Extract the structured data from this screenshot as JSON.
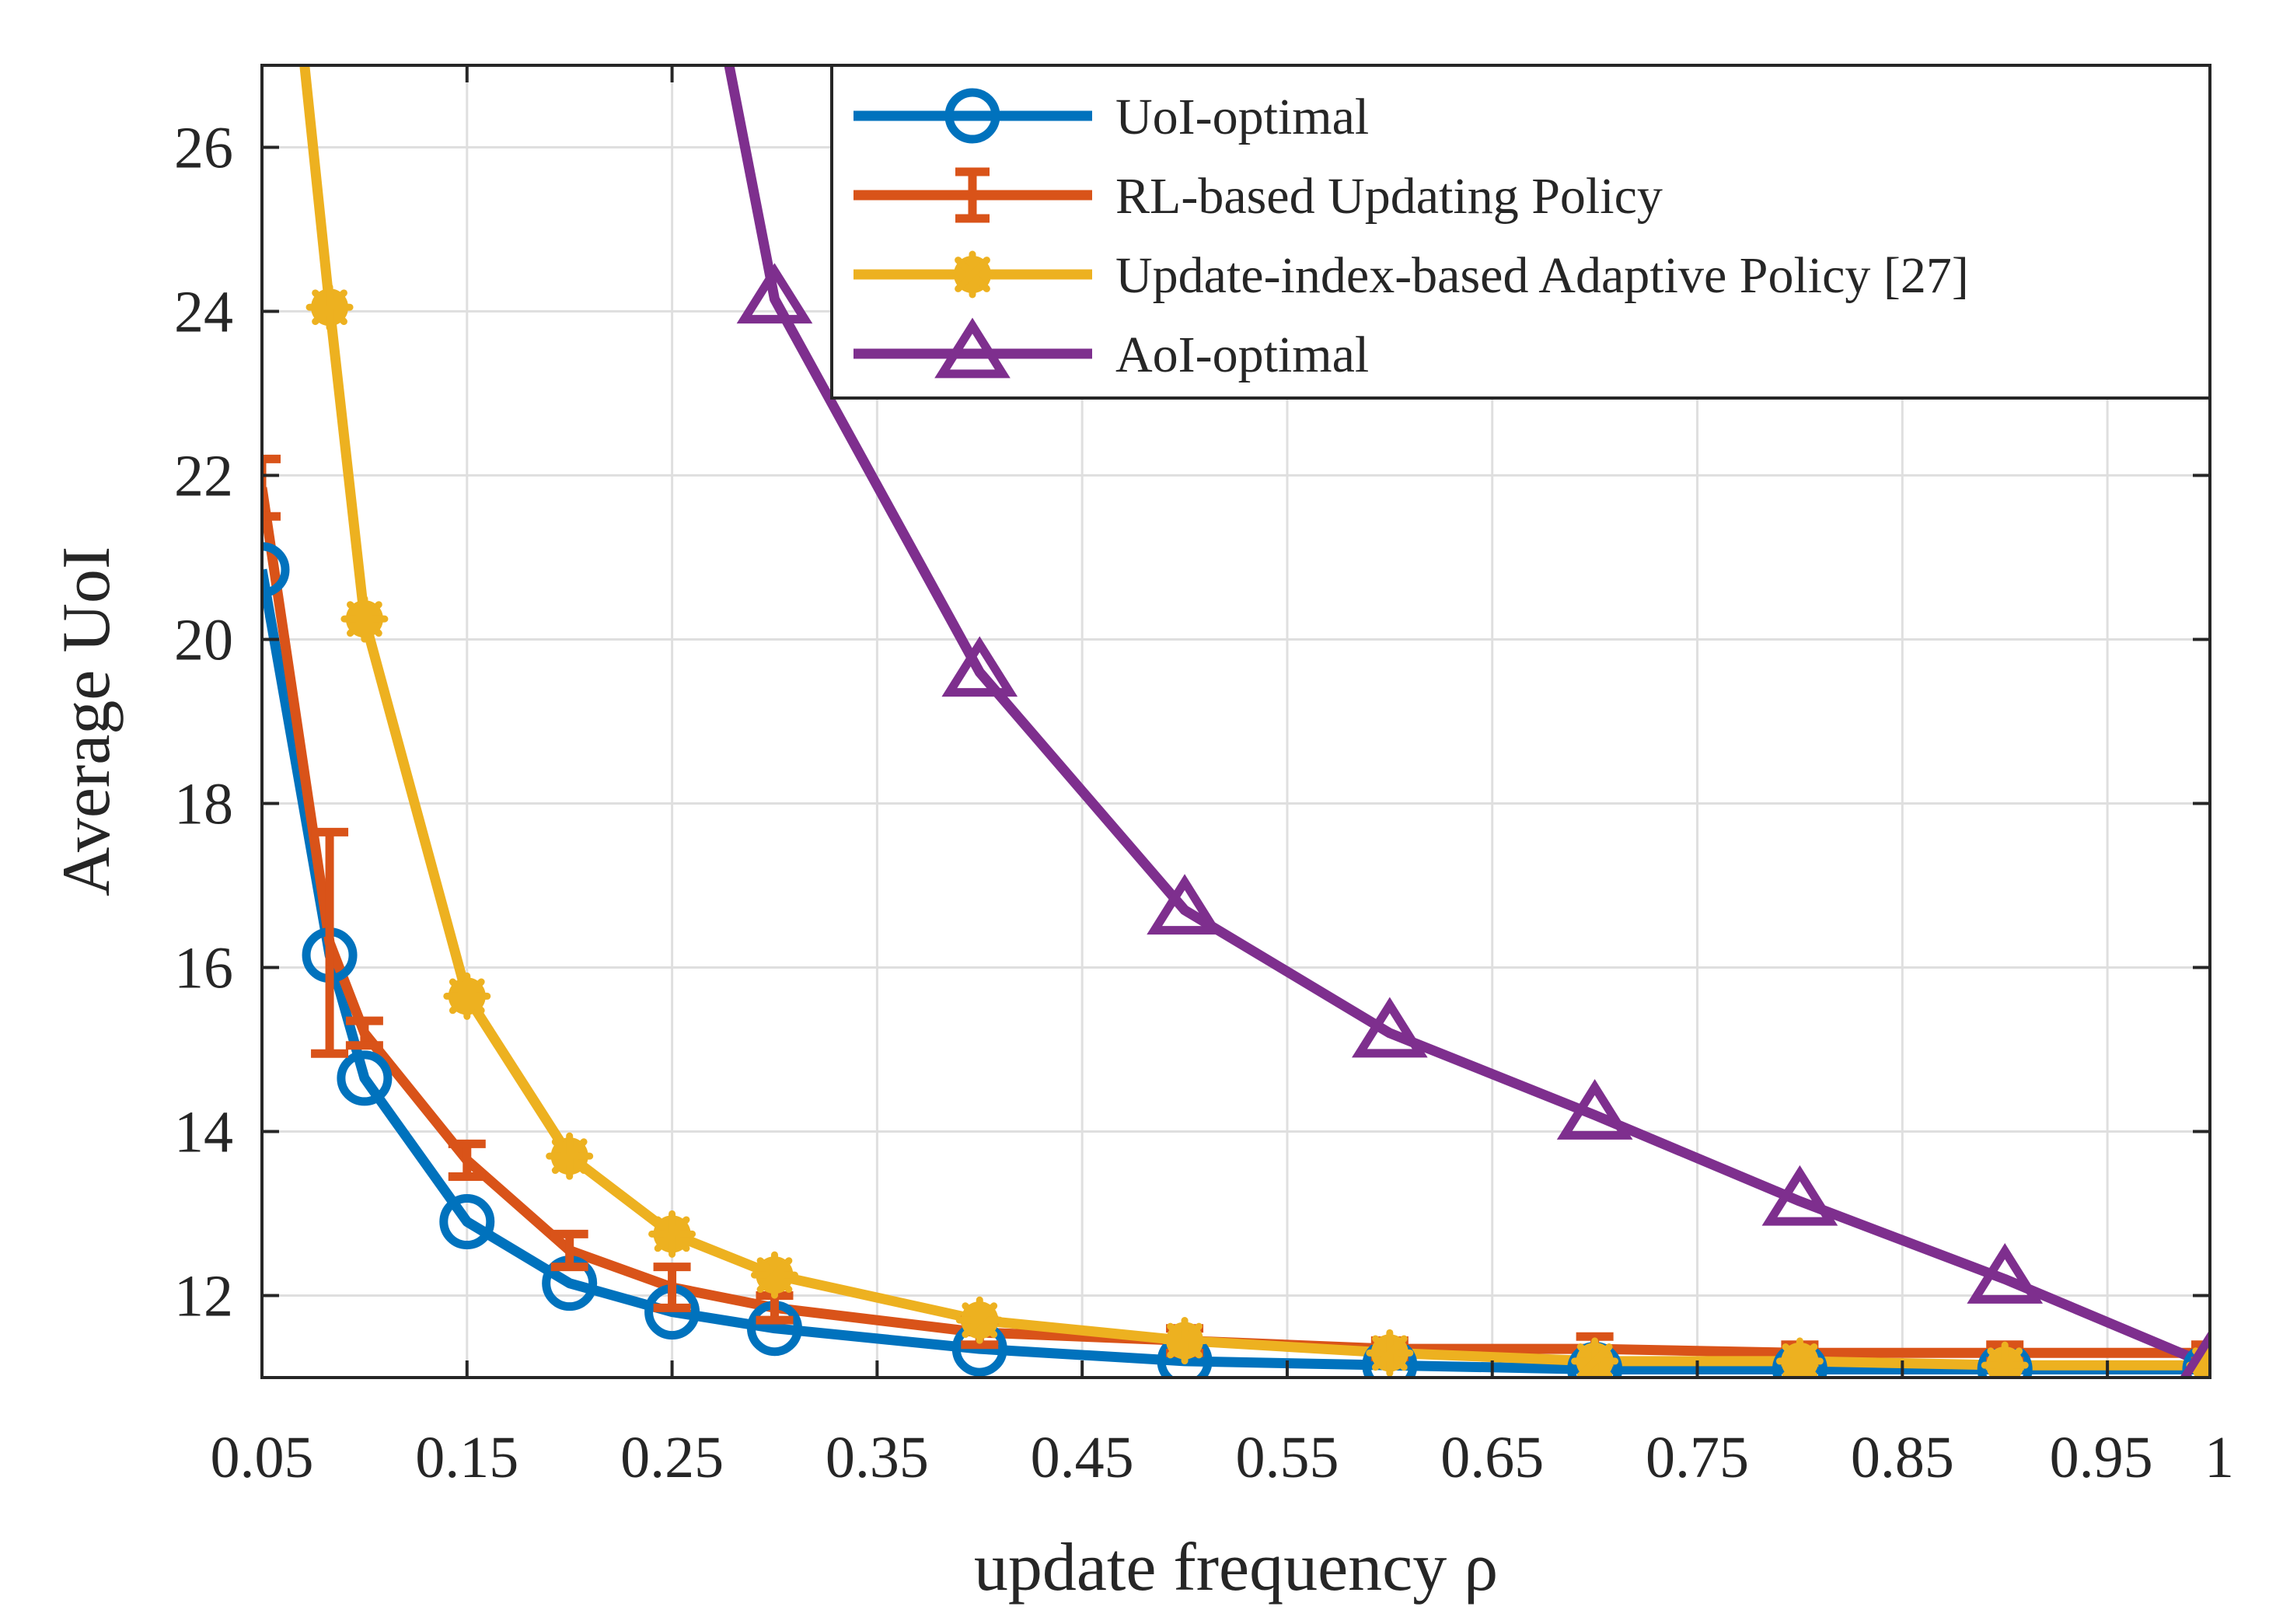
{
  "chart_data": {
    "type": "line",
    "title": "",
    "xlabel": "update frequency ρ",
    "ylabel": "Average UoI",
    "xlim": [
      0.05,
      1.0
    ],
    "ylim": [
      11.0,
      27.0
    ],
    "xticks": [
      0.05,
      0.15,
      0.25,
      0.35,
      0.45,
      0.55,
      0.65,
      0.75,
      0.85,
      0.95,
      1.0
    ],
    "xtick_labels": [
      "0.05",
      "0.15",
      "0.25",
      "0.35",
      "0.45",
      "0.55",
      "0.65",
      "0.75",
      "0.85",
      "0.95",
      "1"
    ],
    "yticks": [
      12,
      14,
      16,
      18,
      20,
      22,
      24,
      26
    ],
    "ytick_labels": [
      "12",
      "14",
      "16",
      "18",
      "20",
      "22",
      "24",
      "26"
    ],
    "grid": true,
    "legend_position": "top-right",
    "series": [
      {
        "name": "UoI-optimal",
        "color": "#0072BD",
        "marker": "circle",
        "x": [
          0.05,
          0.083,
          0.1,
          0.15,
          0.2,
          0.25,
          0.3,
          0.4,
          0.5,
          0.6,
          0.7,
          0.8,
          0.9,
          1.0
        ],
        "y": [
          20.85,
          16.15,
          14.65,
          12.9,
          12.15,
          11.8,
          11.6,
          11.35,
          11.2,
          11.15,
          11.1,
          11.1,
          11.1,
          11.1
        ]
      },
      {
        "name": "RL-based Updating Policy",
        "color": "#D95319",
        "marker": "errorbar",
        "x": [
          0.05,
          0.083,
          0.1,
          0.15,
          0.2,
          0.25,
          0.3,
          0.4,
          0.5,
          0.6,
          0.7,
          0.8,
          0.9,
          1.0
        ],
        "y": [
          21.85,
          16.3,
          15.2,
          13.65,
          12.55,
          12.1,
          11.85,
          11.55,
          11.45,
          11.35,
          11.35,
          11.3,
          11.3,
          11.3
        ],
        "err": [
          0.35,
          1.35,
          0.15,
          0.2,
          0.2,
          0.25,
          0.15,
          0.15,
          0.15,
          0.1,
          0.15,
          0.1,
          0.1,
          0.1
        ]
      },
      {
        "name": "Update-index-based Adaptive Policy [27]",
        "color": "#EDB120",
        "marker": "asterisk",
        "x": [
          0.05,
          0.083,
          0.1,
          0.15,
          0.2,
          0.25,
          0.3,
          0.4,
          0.5,
          0.6,
          0.7,
          0.8,
          0.9,
          1.0
        ],
        "y": [
          32.0,
          24.05,
          20.25,
          15.65,
          13.7,
          12.75,
          12.25,
          11.7,
          11.45,
          11.3,
          11.2,
          11.2,
          11.15,
          11.15
        ]
      },
      {
        "name": "AoI-optimal",
        "color": "#7E2F8E",
        "marker": "triangle",
        "x": [
          0.2,
          0.3,
          0.4,
          0.5,
          0.6,
          0.7,
          0.8,
          0.9,
          1.0
        ],
        "y": [
          37.0,
          24.15,
          19.6,
          16.7,
          15.2,
          14.2,
          13.15,
          12.2,
          11.15
        ]
      }
    ]
  }
}
